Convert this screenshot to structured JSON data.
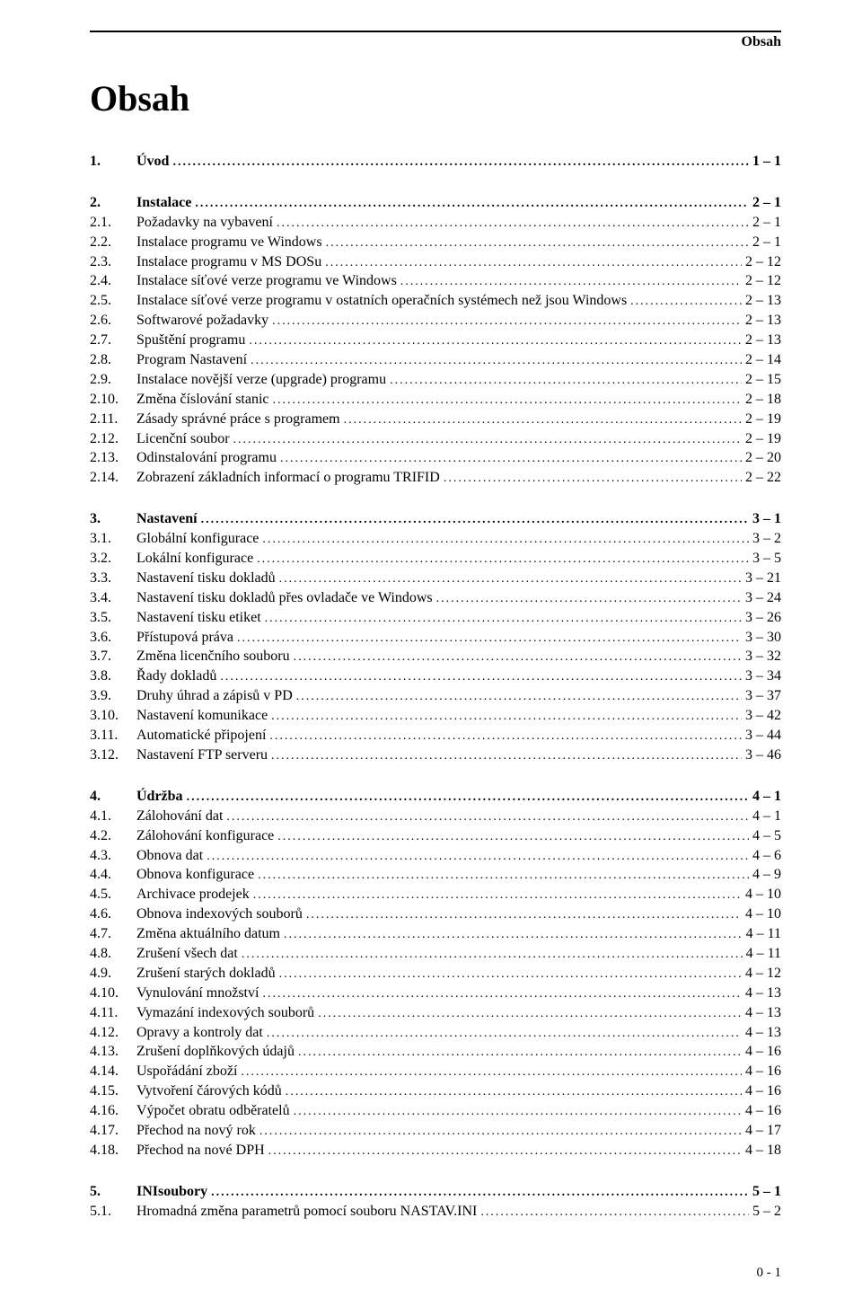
{
  "document": {
    "header_label": "Obsah",
    "title": "Obsah",
    "footer_page": "0 - 1",
    "toc": [
      {
        "head": {
          "num": "1.",
          "label": "Úvod",
          "page": "1 – 1",
          "bold": true
        },
        "items": []
      },
      {
        "head": {
          "num": "2.",
          "label": "Instalace",
          "page": "2 – 1",
          "bold": true
        },
        "items": [
          {
            "num": "2.1.",
            "label": "Požadavky na vybavení",
            "page": "2 – 1"
          },
          {
            "num": "2.2.",
            "label": "Instalace programu ve Windows",
            "page": "2 – 1"
          },
          {
            "num": "2.3.",
            "label": "Instalace programu v MS DOSu",
            "page": "2 – 12"
          },
          {
            "num": "2.4.",
            "label": "Instalace síťové verze programu ve Windows",
            "page": "2 – 12"
          },
          {
            "num": "2.5.",
            "label": "Instalace síťové verze programu v ostatních operačních systémech než jsou Windows",
            "page": "2 – 13"
          },
          {
            "num": "2.6.",
            "label": "Softwarové požadavky",
            "page": "2 – 13"
          },
          {
            "num": "2.7.",
            "label": "Spuštění programu",
            "page": "2 – 13"
          },
          {
            "num": "2.8.",
            "label": "Program Nastavení",
            "page": "2 – 14"
          },
          {
            "num": "2.9.",
            "label": "Instalace novější verze (upgrade) programu",
            "page": "2 – 15"
          },
          {
            "num": "2.10.",
            "label": "Změna číslování stanic",
            "page": "2 – 18"
          },
          {
            "num": "2.11.",
            "label": "Zásady správné práce s programem",
            "page": "2 – 19"
          },
          {
            "num": "2.12.",
            "label": "Licenční soubor",
            "page": "2 – 19"
          },
          {
            "num": "2.13.",
            "label": "Odinstalování programu",
            "page": "2 – 20"
          },
          {
            "num": "2.14.",
            "label": "Zobrazení základních informací o programu TRIFID",
            "page": "2 – 22"
          }
        ]
      },
      {
        "head": {
          "num": "3.",
          "label": "Nastavení",
          "page": "3 – 1",
          "bold": true
        },
        "items": [
          {
            "num": "3.1.",
            "label": "Globální konfigurace",
            "page": "3 – 2"
          },
          {
            "num": "3.2.",
            "label": "Lokální konfigurace",
            "page": "3 – 5"
          },
          {
            "num": "3.3.",
            "label": "Nastavení tisku dokladů",
            "page": "3 – 21"
          },
          {
            "num": "3.4.",
            "label": "Nastavení tisku dokladů přes ovladače ve Windows",
            "page": "3 – 24"
          },
          {
            "num": "3.5.",
            "label": "Nastavení tisku etiket",
            "page": "3 – 26"
          },
          {
            "num": "3.6.",
            "label": "Přístupová práva",
            "page": "3 – 30"
          },
          {
            "num": "3.7.",
            "label": "Změna licenčního souboru",
            "page": "3 – 32"
          },
          {
            "num": "3.8.",
            "label": "Řady dokladů",
            "page": "3 – 34"
          },
          {
            "num": "3.9.",
            "label": "Druhy úhrad a zápisů v PD",
            "page": "3 – 37"
          },
          {
            "num": "3.10.",
            "label": "Nastavení komunikace",
            "page": "3 – 42"
          },
          {
            "num": "3.11.",
            "label": "Automatické připojení",
            "page": "3 – 44"
          },
          {
            "num": "3.12.",
            "label": "Nastavení FTP serveru",
            "page": "3 – 46"
          }
        ]
      },
      {
        "head": {
          "num": "4.",
          "label": "Údržba",
          "page": "4 – 1",
          "bold": true
        },
        "items": [
          {
            "num": "4.1.",
            "label": "Zálohování dat",
            "page": "4 – 1"
          },
          {
            "num": "4.2.",
            "label": "Zálohování konfigurace",
            "page": "4 – 5"
          },
          {
            "num": "4.3.",
            "label": "Obnova dat",
            "page": "4 – 6"
          },
          {
            "num": "4.4.",
            "label": "Obnova konfigurace",
            "page": "4 – 9"
          },
          {
            "num": "4.5.",
            "label": "Archivace prodejek",
            "page": "4 – 10"
          },
          {
            "num": "4.6.",
            "label": "Obnova indexových souborů",
            "page": "4 – 10"
          },
          {
            "num": "4.7.",
            "label": "Změna aktuálního datum",
            "page": "4 – 11"
          },
          {
            "num": "4.8.",
            "label": "Zrušení všech dat",
            "page": "4 – 11"
          },
          {
            "num": "4.9.",
            "label": "Zrušení starých dokladů",
            "page": "4 – 12"
          },
          {
            "num": "4.10.",
            "label": "Vynulování množství",
            "page": "4 – 13"
          },
          {
            "num": "4.11.",
            "label": "Vymazání indexových souborů",
            "page": "4 – 13"
          },
          {
            "num": "4.12.",
            "label": "Opravy a kontroly dat",
            "page": "4 – 13"
          },
          {
            "num": "4.13.",
            "label": "Zrušení doplňkových údajů",
            "page": "4 – 16"
          },
          {
            "num": "4.14.",
            "label": "Uspořádání zboží",
            "page": "4 – 16"
          },
          {
            "num": "4.15.",
            "label": "Vytvoření čárových kódů",
            "page": "4 – 16"
          },
          {
            "num": "4.16.",
            "label": "Výpočet obratu odběratelů",
            "page": "4 – 16"
          },
          {
            "num": "4.17.",
            "label": "Přechod na nový rok",
            "page": "4 – 17"
          },
          {
            "num": "4.18.",
            "label": "Přechod na nové DPH",
            "page": "4 – 18"
          }
        ]
      },
      {
        "head": {
          "num": "5.",
          "label": "INIsoubory",
          "page": "5 – 1",
          "bold": true
        },
        "items": [
          {
            "num": "5.1.",
            "label": "Hromadná změna parametrů pomocí souboru NASTAV.INI",
            "page": "5 – 2"
          }
        ]
      }
    ]
  }
}
